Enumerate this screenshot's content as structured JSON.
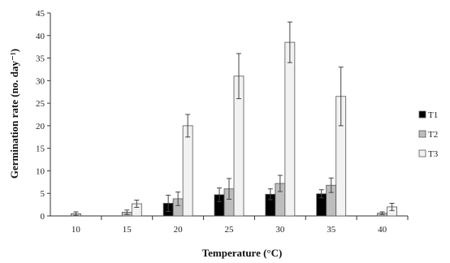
{
  "chart_data": {
    "type": "bar",
    "xlabel": "Temperature (°C)",
    "ylabel": "Germination rate (no. day⁻¹)",
    "categories": [
      "10",
      "15",
      "20",
      "25",
      "30",
      "35",
      "40"
    ],
    "ylim": [
      0,
      45
    ],
    "yticks": [
      0,
      5,
      10,
      15,
      20,
      25,
      30,
      35,
      40,
      45
    ],
    "grid": false,
    "legend_position": "right",
    "series": [
      {
        "name": "T1",
        "color": "#000000",
        "values": [
          0,
          0,
          2.8,
          4.7,
          4.8,
          4.9,
          0
        ],
        "errors": [
          0,
          0,
          1.8,
          1.5,
          1.2,
          0.9,
          0
        ]
      },
      {
        "name": "T2",
        "color": "#bdbdbd",
        "values": [
          0.5,
          0.8,
          3.8,
          6.0,
          7.2,
          6.8,
          0.6
        ],
        "errors": [
          0.4,
          0.5,
          1.5,
          2.3,
          1.8,
          1.6,
          0.3
        ]
      },
      {
        "name": "T3",
        "color": "#f2f2f2",
        "values": [
          0,
          2.7,
          20.0,
          31.0,
          38.5,
          26.5,
          2.0
        ],
        "errors": [
          0,
          0.8,
          2.5,
          5.0,
          4.5,
          6.5,
          0.8
        ]
      }
    ]
  }
}
